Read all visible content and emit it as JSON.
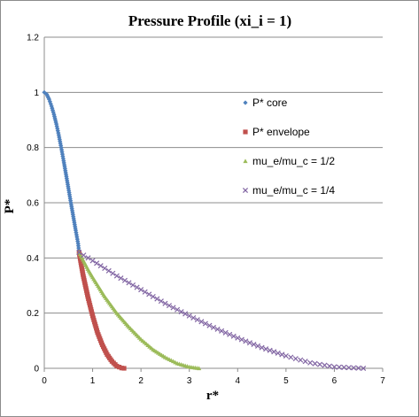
{
  "chart_data": {
    "type": "scatter",
    "title": "Pressure Profile (xi_i = 1)",
    "xlabel": "r*",
    "ylabel": "P*",
    "xlim": [
      0,
      7
    ],
    "ylim": [
      0,
      1.2
    ],
    "xticks": [
      "0",
      "1",
      "2",
      "3",
      "4",
      "5",
      "6",
      "7"
    ],
    "yticks": [
      "0",
      "0.2",
      "0.4",
      "0.6",
      "0.8",
      "1",
      "1.2"
    ],
    "grid": "horizontal",
    "legend": "right",
    "series": [
      {
        "name": "P* core",
        "color": "#4f81bd",
        "marker": "diamond",
        "points": [
          [
            0,
            1.0
          ],
          [
            0.05,
            0.993
          ],
          [
            0.1,
            0.975
          ],
          [
            0.15,
            0.95
          ],
          [
            0.2,
            0.92
          ],
          [
            0.25,
            0.885
          ],
          [
            0.3,
            0.845
          ],
          [
            0.35,
            0.8
          ],
          [
            0.4,
            0.752
          ],
          [
            0.45,
            0.702
          ],
          [
            0.5,
            0.652
          ],
          [
            0.55,
            0.6
          ],
          [
            0.6,
            0.55
          ],
          [
            0.65,
            0.5
          ],
          [
            0.7,
            0.452
          ],
          [
            0.72,
            0.42
          ]
        ]
      },
      {
        "name": "P* envelope",
        "color": "#c0504d",
        "marker": "square",
        "points": [
          [
            0.72,
            0.42
          ],
          [
            0.8,
            0.34
          ],
          [
            0.9,
            0.26
          ],
          [
            1.0,
            0.19
          ],
          [
            1.1,
            0.13
          ],
          [
            1.2,
            0.085
          ],
          [
            1.3,
            0.05
          ],
          [
            1.4,
            0.025
          ],
          [
            1.5,
            0.008
          ],
          [
            1.6,
            0.001
          ],
          [
            1.65,
            0.0
          ]
        ]
      },
      {
        "name": "mu_e/mu_c = 1/2",
        "color": "#9bbb59",
        "marker": "triangle",
        "points": [
          [
            0.72,
            0.42
          ],
          [
            0.9,
            0.36
          ],
          [
            1.0,
            0.33
          ],
          [
            1.25,
            0.26
          ],
          [
            1.5,
            0.2
          ],
          [
            1.75,
            0.15
          ],
          [
            2.0,
            0.105
          ],
          [
            2.25,
            0.068
          ],
          [
            2.5,
            0.04
          ],
          [
            2.75,
            0.018
          ],
          [
            3.0,
            0.005
          ],
          [
            3.2,
            0.0
          ]
        ]
      },
      {
        "name": "mu_e/mu_c = 1/4",
        "color": "#8064a2",
        "marker": "x",
        "points": [
          [
            0.72,
            0.42
          ],
          [
            1.0,
            0.39
          ],
          [
            1.5,
            0.335
          ],
          [
            2.0,
            0.285
          ],
          [
            2.5,
            0.235
          ],
          [
            3.0,
            0.19
          ],
          [
            3.5,
            0.148
          ],
          [
            4.0,
            0.11
          ],
          [
            4.5,
            0.075
          ],
          [
            5.0,
            0.045
          ],
          [
            5.5,
            0.02
          ],
          [
            6.0,
            0.005
          ],
          [
            6.6,
            0.0
          ]
        ]
      }
    ]
  }
}
